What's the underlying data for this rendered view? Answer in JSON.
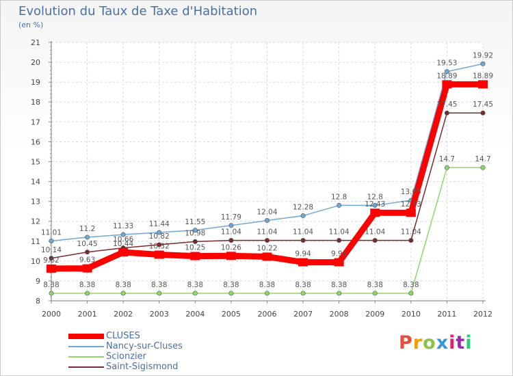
{
  "title": "Evolution du Taux de Taxe d'Habitation",
  "unit_label": "(en %)",
  "logo": {
    "text": "Proxiti",
    "colors": [
      "#e74c3c",
      "#f39c12",
      "#8bc34a",
      "#3498db",
      "#e91e63",
      "#9c27b0",
      "#2ecc71"
    ]
  },
  "chart_data": {
    "type": "line",
    "x": [
      "2000",
      "2001",
      "2002",
      "2003",
      "2004",
      "2005",
      "2006",
      "2007",
      "2008",
      "2009",
      "2010",
      "2011",
      "2012"
    ],
    "ylim": [
      8,
      21
    ],
    "yticks": [
      "8",
      "9",
      "10",
      "11",
      "12",
      "13",
      "14",
      "15",
      "16",
      "17",
      "18",
      "19",
      "20",
      "21"
    ],
    "grid": true,
    "legend_position": "bottom-left",
    "series": [
      {
        "name": "CLUSES",
        "color": "#ff0000",
        "width": "thick",
        "values": [
          9.62,
          9.63,
          10.44,
          10.32,
          10.25,
          10.26,
          10.22,
          9.94,
          9.94,
          12.43,
          12.43,
          18.89,
          18.89
        ],
        "labels": [
          "9.62",
          "9.63",
          "10.44",
          "10.32",
          "10.25",
          "10.26",
          "10.22",
          "9.94",
          "9.94",
          "12.43",
          "12.43",
          "18.89",
          "18.89"
        ]
      },
      {
        "name": "Nancy-sur-Cluses",
        "color": "#6fa8d6",
        "width": "thin",
        "values": [
          11.01,
          11.2,
          11.33,
          11.44,
          11.55,
          11.79,
          12.04,
          12.28,
          12.8,
          12.8,
          13.05,
          19.53,
          19.92
        ],
        "labels": [
          "11.01",
          "11.2",
          "11.33",
          "11.44",
          "11.55",
          "11.79",
          "12.04",
          "12.28",
          "12.8",
          "12.8",
          "13.05",
          "19.53",
          "19.92"
        ]
      },
      {
        "name": "Scionzier",
        "color": "#8fd46a",
        "width": "thin",
        "values": [
          8.38,
          8.38,
          8.38,
          8.38,
          8.38,
          8.38,
          8.38,
          8.38,
          8.38,
          8.38,
          8.38,
          14.7,
          14.7
        ],
        "labels": [
          "8.38",
          "8.38",
          "8.38",
          "8.38",
          "8.38",
          "8.38",
          "8.38",
          "8.38",
          "8.38",
          "8.38",
          "8.38",
          "14.7",
          "14.7"
        ]
      },
      {
        "name": "Saint-Sigismond",
        "color": "#7a2a2a",
        "width": "thin",
        "values": [
          10.14,
          10.45,
          10.66,
          10.82,
          10.98,
          11.04,
          11.04,
          11.04,
          11.04,
          11.04,
          11.04,
          17.45,
          17.45
        ],
        "labels": [
          "10.14",
          "10.45",
          "10.66",
          "10.82",
          "10.98",
          "11.04",
          "11.04",
          "11.04",
          "11.04",
          "11.04",
          "11.04",
          "17.45",
          "17.45"
        ]
      }
    ]
  }
}
